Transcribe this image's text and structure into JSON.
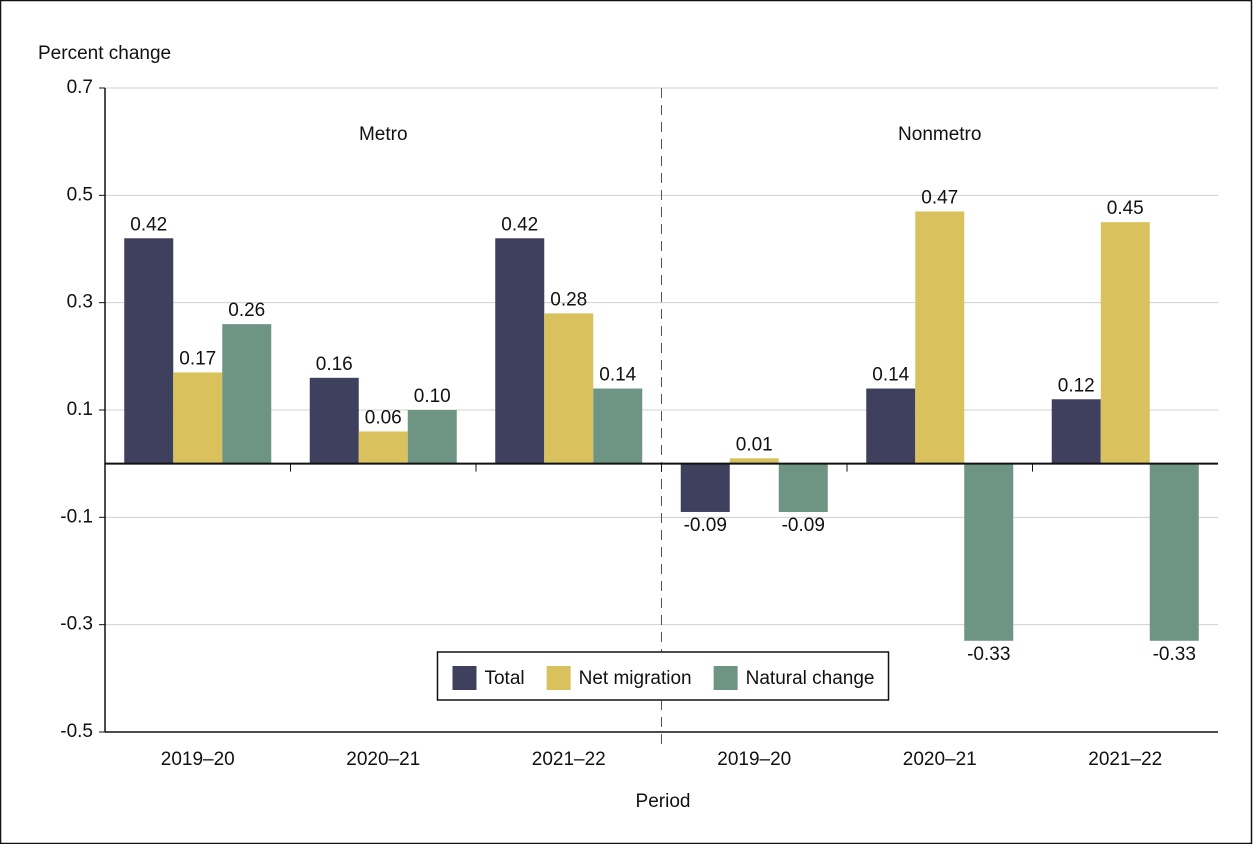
{
  "chart_data": {
    "type": "bar",
    "y_axis_label": "Percent change",
    "x_axis_label": "Period",
    "groups": [
      "Metro",
      "Nonmetro"
    ],
    "categories": [
      "2019–20",
      "2020–21",
      "2021–22",
      "2019–20",
      "2020–21",
      "2021–22"
    ],
    "series": [
      {
        "name": "Total",
        "color": "#3f3f5e",
        "values": [
          0.42,
          0.16,
          0.42,
          -0.09,
          0.14,
          0.12
        ],
        "value_labels": [
          "0.42",
          "0.16",
          "0.42",
          "-0.09",
          "0.14",
          "0.12"
        ]
      },
      {
        "name": "Net migration",
        "color": "#d9c25d",
        "values": [
          0.17,
          0.06,
          0.28,
          0.01,
          0.47,
          0.45
        ],
        "value_labels": [
          "0.17",
          "0.06",
          "0.28",
          "0.01",
          "0.47",
          "0.45"
        ]
      },
      {
        "name": "Natural change",
        "color": "#6e9484",
        "values": [
          0.26,
          0.1,
          0.14,
          -0.09,
          -0.33,
          -0.33
        ],
        "value_labels": [
          "0.26",
          "0.10",
          "0.14",
          "-0.09",
          "-0.33",
          "-0.33"
        ]
      }
    ],
    "ylim": [
      -0.5,
      0.7
    ],
    "yticks": [
      -0.5,
      -0.3,
      -0.1,
      0.1,
      0.3,
      0.5,
      0.7
    ],
    "grid": true,
    "legend": "bottom"
  }
}
